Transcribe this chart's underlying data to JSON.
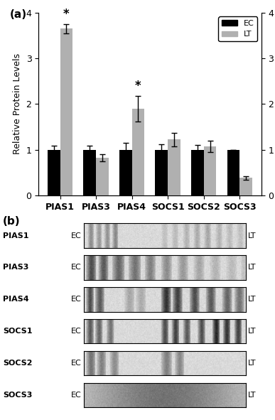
{
  "categories": [
    "PIAS1",
    "PIAS3",
    "PIAS4",
    "SOCS1",
    "SOCS2",
    "SOCS3"
  ],
  "ec_values": [
    1.0,
    1.0,
    1.0,
    1.0,
    1.0,
    1.0
  ],
  "lt_values": [
    3.65,
    0.82,
    1.9,
    1.22,
    1.07,
    0.38
  ],
  "ec_errors": [
    0.08,
    0.09,
    0.15,
    0.12,
    0.1,
    0.0
  ],
  "lt_errors": [
    0.1,
    0.08,
    0.28,
    0.15,
    0.12,
    0.04
  ],
  "ec_color": "#000000",
  "lt_color": "#b0b0b0",
  "ylabel": "Relative Protein Levels",
  "ylim": [
    0,
    4
  ],
  "yticks": [
    0,
    1,
    2,
    3,
    4
  ],
  "panel_a_label": "(a)",
  "panel_b_label": "(b)",
  "legend_ec": "EC",
  "legend_lt": "LT",
  "blot_labels": [
    "PIAS1",
    "PIAS3",
    "PIAS4",
    "SOCS1",
    "SOCS2",
    "SOCS3"
  ],
  "bar_width": 0.35,
  "figsize": [
    3.87,
    5.91
  ],
  "dpi": 100
}
